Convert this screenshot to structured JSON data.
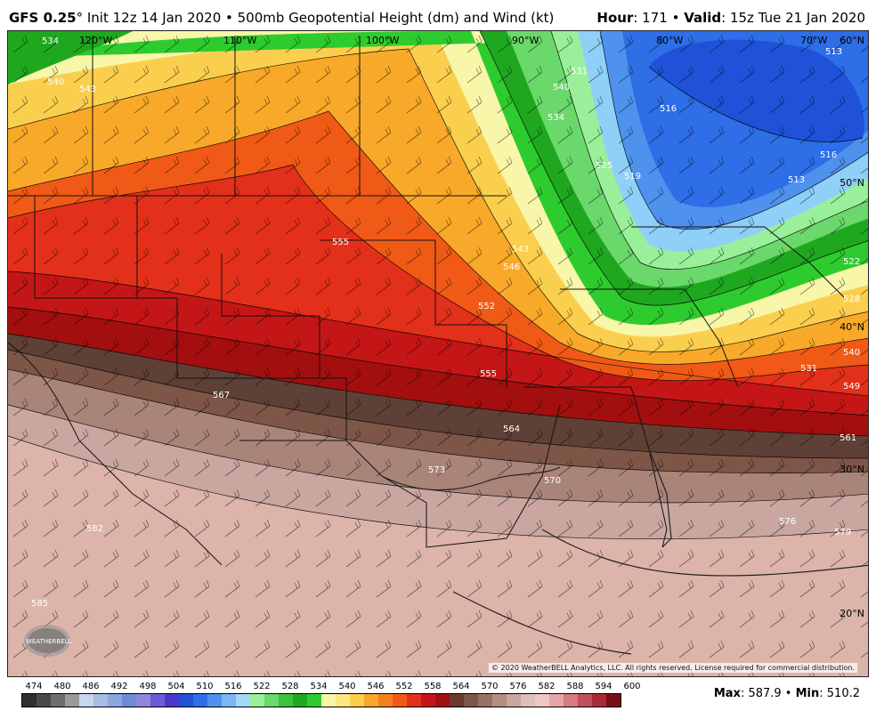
{
  "header": {
    "model": "GFS 0.25",
    "degree": "°",
    "init": " Init 12z 14 Jan 2020 • 500mb Geopotential Height (dm) and Wind (kt)",
    "hour_label": "Hour",
    "hour_value": ": 171 • ",
    "valid_label": "Valid",
    "valid_value": ": 15z Tue 21 Jan 2020"
  },
  "map": {
    "lon_labels": [
      "120°W",
      "110°W",
      "100°W",
      "90°W",
      "80°W",
      "70°W"
    ],
    "lat_labels": [
      "60°N",
      "50°N",
      "40°N",
      "30°N",
      "20°N"
    ],
    "contour_labels": [
      "534",
      "540",
      "543",
      "555",
      "552",
      "546",
      "543",
      "540",
      "531",
      "534",
      "525",
      "519",
      "516",
      "516",
      "513",
      "513",
      "522",
      "528",
      "531",
      "549",
      "540",
      "555",
      "567",
      "564",
      "561",
      "573",
      "570",
      "576",
      "579",
      "582",
      "585"
    ],
    "copyright": "© 2020 WeatherBELL Analytics, LLC. All rights reserved. License required for commercial distribution.",
    "logo_text": "WEATHERBELL",
    "colors": {
      "cold_blue": "#2f6fe0",
      "cyan": "#8fd0f8",
      "green": "#21b02c",
      "yellow": "#fbf29a",
      "orange": "#f7a227",
      "red": "#e5301a",
      "darkred": "#a10f0f",
      "brown": "#5e4036",
      "tan": "#a47f73",
      "pink": "#dcb4aa"
    }
  },
  "scale": {
    "labels": [
      "474",
      "480",
      "486",
      "492",
      "498",
      "504",
      "510",
      "516",
      "522",
      "528",
      "534",
      "540",
      "546",
      "552",
      "558",
      "564",
      "570",
      "576",
      "582",
      "588",
      "594",
      "600"
    ],
    "colors": [
      "#2f2f2f",
      "#4a4a4a",
      "#6e6e6e",
      "#9a9a9a",
      "#c8d6ee",
      "#a8bce6",
      "#8aa6de",
      "#6f8bd8",
      "#8e88de",
      "#6b5bd6",
      "#4a39c9",
      "#1f52d8",
      "#2e6ee6",
      "#4f92ee",
      "#7ab8f4",
      "#a4d6f8",
      "#9af09a",
      "#6ad86a",
      "#3cc23c",
      "#1fa81f",
      "#2ecb2e",
      "#f8f6a8",
      "#fce780",
      "#fbcf4e",
      "#f8a92a",
      "#f4821c",
      "#f05a16",
      "#e3301a",
      "#c41616",
      "#a30f0f",
      "#6a3a2e",
      "#7d5648",
      "#987266",
      "#b28e84",
      "#c9a7a0",
      "#dcc0bc",
      "#eec6c6",
      "#e5a4a6",
      "#d47c80",
      "#c0505a",
      "#a82a36",
      "#7a0f1a"
    ],
    "max_label": "Max",
    "max_value": ": 587.9 • ",
    "min_label": "Min",
    "min_value": ": 510.2"
  }
}
